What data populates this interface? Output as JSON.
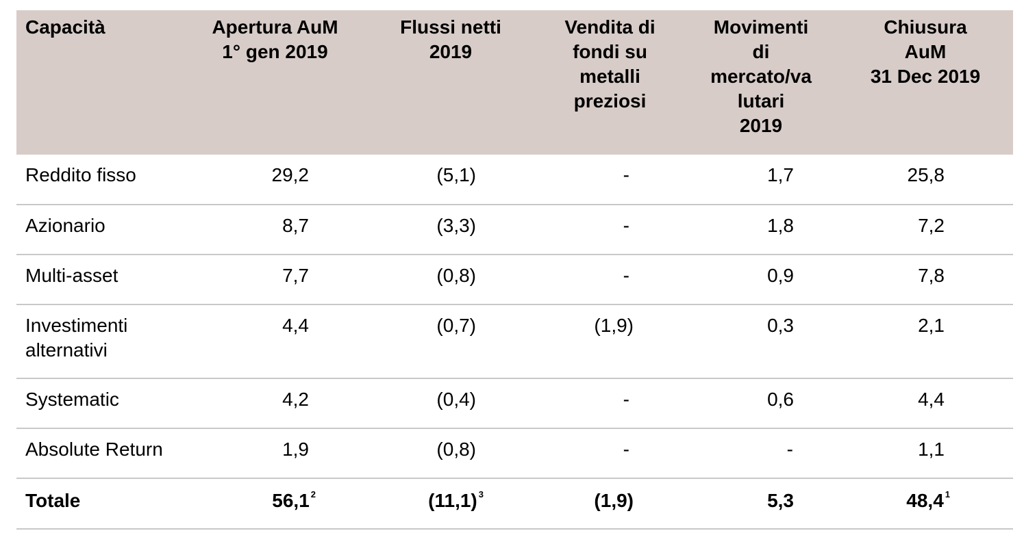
{
  "headers": {
    "capacita": "Capacità",
    "apertura": [
      "Apertura AuM",
      "1° gen 2019"
    ],
    "flussi": [
      "Flussi netti",
      "2019"
    ],
    "vendita": [
      "Vendita di",
      "fondi su",
      "metalli",
      "preziosi"
    ],
    "movimenti": [
      "Movimenti",
      "di",
      "mercato/va",
      "lutari",
      "2019"
    ],
    "chiusura": [
      "Chiusura",
      "AuM",
      "31 Dec 2019"
    ]
  },
  "rows": [
    {
      "label": [
        "Reddito fisso"
      ],
      "apertura": "29,2",
      "flussi": "(5,1)",
      "vendita": "-",
      "movimenti": "1,7",
      "chiusura": "25,8"
    },
    {
      "label": [
        "Azionario"
      ],
      "apertura": "8,7",
      "flussi": "(3,3)",
      "vendita": "-",
      "movimenti": "1,8",
      "chiusura": "7,2"
    },
    {
      "label": [
        "Multi-asset"
      ],
      "apertura": "7,7",
      "flussi": "(0,8)",
      "vendita": "-",
      "movimenti": "0,9",
      "chiusura": "7,8"
    },
    {
      "label": [
        "Investimenti",
        "alternativi"
      ],
      "apertura": "4,4",
      "flussi": "(0,7)",
      "vendita": "(1,9)",
      "movimenti": "0,3",
      "chiusura": "2,1"
    },
    {
      "label": [
        "Systematic"
      ],
      "apertura": "4,2",
      "flussi": "(0,4)",
      "vendita": "-",
      "movimenti": "0,6",
      "chiusura": "4,4"
    },
    {
      "label": [
        "Absolute Return"
      ],
      "apertura": "1,9",
      "flussi": "(0,8)",
      "vendita": "-",
      "movimenti": "-",
      "chiusura": "1,1"
    }
  ],
  "total": {
    "label": "Totale",
    "apertura": "56,1",
    "apertura_note": "2",
    "flussi": "(11,1)",
    "flussi_note": "3",
    "vendita": "(1,9)",
    "movimenti": "5,3",
    "chiusura": "48,4",
    "chiusura_note": "1"
  },
  "colors": {
    "header_bg": "#d7ccc8",
    "row_divider": "#c8c8c8"
  }
}
